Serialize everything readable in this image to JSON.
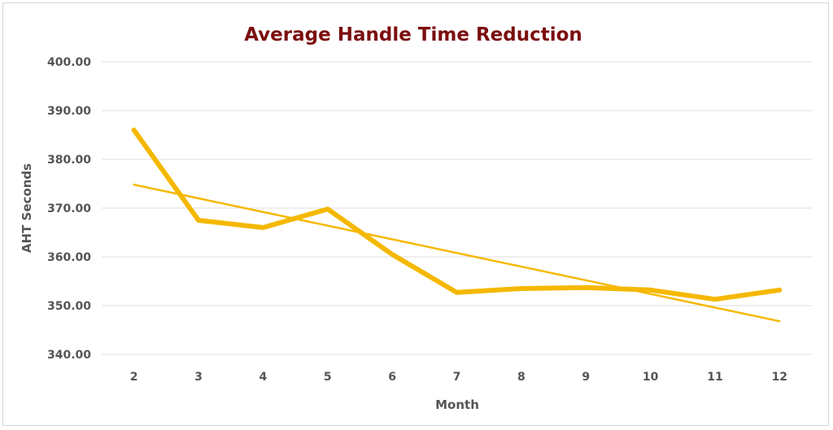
{
  "chart_data": {
    "type": "line",
    "title": "Average Handle Time Reduction",
    "xlabel": "Month",
    "ylabel": "AHT Seconds",
    "x": [
      2,
      3,
      4,
      5,
      6,
      7,
      8,
      9,
      10,
      11,
      12
    ],
    "y_ticks": [
      "340.00",
      "350.00",
      "360.00",
      "370.00",
      "380.00",
      "390.00",
      "400.00"
    ],
    "ylim": [
      340,
      400
    ],
    "grid": true,
    "legend": "none",
    "series": [
      {
        "values": [
          386.0,
          367.5,
          366.0,
          369.8,
          360.5,
          352.7,
          353.5,
          353.7,
          353.2,
          351.3,
          353.2
        ],
        "color": "#f5b800"
      }
    ],
    "trendline": {
      "type": "linear",
      "start": [
        2,
        374.8
      ],
      "end": [
        12,
        346.8
      ],
      "color": "#f5b800"
    }
  }
}
